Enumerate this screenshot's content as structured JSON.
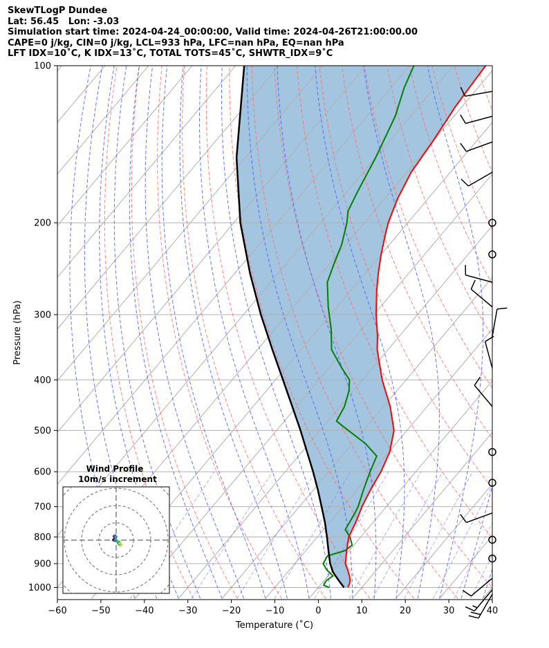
{
  "header": {
    "line1": "SkewTLogP Dundee",
    "line2": "Lat: 56.45   Lon: -3.03",
    "line3": "Simulation start time: 2024-04-24_00:00:00, Valid time: 2024-04-26T21:00:00.00",
    "line4": "CAPE=0 j/kg, CIN=0 j/kg, LCL=933 hPa, LFC=nan hPa, EQ=nan hPa",
    "line5": "LFT IDX=10˚C, K IDX=13˚C, TOTAL TOTS=45˚C, SHWTR_IDX=9˚C"
  },
  "axes": {
    "xlabel": "Temperature (˚C)",
    "ylabel": "Pressure (hPa)"
  },
  "inset": {
    "title1": "Wind Profile",
    "title2": "10m/s increment"
  },
  "colors": {
    "temperature": "#ff0000",
    "dewpoint": "#008000",
    "parcel": "#000000",
    "cape_fill": "#a3c5df",
    "dry_adiabat": "#ff6b6b",
    "moist_adiabat": "#4a5cff",
    "mixing_ratio": "#7b7bef",
    "isotherm": "#b0b0b0",
    "purple_line": "#9b4fcf"
  },
  "chart_data": {
    "type": "line",
    "subtype": "skew-T log-P",
    "xlim": [
      -60,
      40
    ],
    "ylim": [
      1040,
      100
    ],
    "xticks": [
      -60,
      -50,
      -40,
      -30,
      -20,
      -10,
      0,
      10,
      20,
      30,
      40
    ],
    "yticks": [
      1000,
      900,
      800,
      700,
      600,
      500,
      400,
      300,
      200,
      100
    ],
    "yscale": "log",
    "grid": true,
    "series": [
      {
        "key": "temperature",
        "points": [
          [
            1000,
            6.8
          ],
          [
            975,
            6.2
          ],
          [
            950,
            4.9
          ],
          [
            925,
            3.3
          ],
          [
            900,
            1.6
          ],
          [
            850,
            -0.6
          ],
          [
            800,
            -2.8
          ],
          [
            750,
            -4.0
          ],
          [
            700,
            -5.6
          ],
          [
            650,
            -6.9
          ],
          [
            600,
            -8.0
          ],
          [
            550,
            -9.8
          ],
          [
            500,
            -13.0
          ],
          [
            450,
            -18.5
          ],
          [
            400,
            -25.5
          ],
          [
            350,
            -32.5
          ],
          [
            330,
            -35.0
          ],
          [
            300,
            -39.5
          ],
          [
            270,
            -44.0
          ],
          [
            250,
            -47.0
          ],
          [
            230,
            -50.0
          ],
          [
            210,
            -53.0
          ],
          [
            200,
            -54.5
          ],
          [
            180,
            -57.0
          ],
          [
            160,
            -59.0
          ],
          [
            140,
            -60.0
          ],
          [
            120,
            -61.5
          ],
          [
            110,
            -62.0
          ],
          [
            100,
            -62.5
          ]
        ]
      },
      {
        "key": "dewpoint",
        "points": [
          [
            1000,
            2.5
          ],
          [
            990,
            0.8
          ],
          [
            970,
            0.5
          ],
          [
            950,
            1.1
          ],
          [
            925,
            -1.5
          ],
          [
            900,
            -3.5
          ],
          [
            870,
            -4.0
          ],
          [
            850,
            -1.0
          ],
          [
            830,
            -0.4
          ],
          [
            800,
            -2.5
          ],
          [
            775,
            -5.0
          ],
          [
            720,
            -6.0
          ],
          [
            700,
            -6.5
          ],
          [
            650,
            -8.5
          ],
          [
            600,
            -10.5
          ],
          [
            560,
            -12.0
          ],
          [
            530,
            -17.0
          ],
          [
            500,
            -23.5
          ],
          [
            480,
            -28.0
          ],
          [
            450,
            -29.0
          ],
          [
            420,
            -31.0
          ],
          [
            400,
            -33.0
          ],
          [
            380,
            -37.0
          ],
          [
            350,
            -43.0
          ],
          [
            320,
            -47.0
          ],
          [
            290,
            -52.0
          ],
          [
            260,
            -57.0
          ],
          [
            240,
            -59.0
          ],
          [
            220,
            -61.0
          ],
          [
            200,
            -64.0
          ],
          [
            190,
            -66.0
          ],
          [
            175,
            -67.5
          ],
          [
            150,
            -70.0
          ],
          [
            125,
            -73.5
          ],
          [
            110,
            -77.0
          ],
          [
            100,
            -79.0
          ]
        ]
      },
      {
        "key": "parcel",
        "points": [
          [
            1000,
            5.9
          ],
          [
            975,
            3.8
          ],
          [
            950,
            1.7
          ],
          [
            933,
            0.3
          ],
          [
            900,
            -1.9
          ],
          [
            850,
            -4.8
          ],
          [
            800,
            -7.8
          ],
          [
            750,
            -11.1
          ],
          [
            700,
            -14.9
          ],
          [
            650,
            -19.0
          ],
          [
            600,
            -23.6
          ],
          [
            550,
            -28.8
          ],
          [
            500,
            -34.5
          ],
          [
            450,
            -41.0
          ],
          [
            400,
            -48.3
          ],
          [
            350,
            -56.6
          ],
          [
            300,
            -66.0
          ],
          [
            250,
            -76.5
          ],
          [
            200,
            -88.5
          ],
          [
            150,
            -102.0
          ],
          [
            100,
            -118.0
          ]
        ]
      }
    ],
    "wind_barbs": [
      {
        "p": 1030,
        "speed_kt": 20,
        "dir": 210
      },
      {
        "p": 1010,
        "speed_kt": 15,
        "dir": 220
      },
      {
        "p": 960,
        "speed_kt": 10,
        "dir": 230
      },
      {
        "p": 880,
        "speed_kt": 0,
        "dir": 0
      },
      {
        "p": 810,
        "speed_kt": 0,
        "dir": 0
      },
      {
        "p": 720,
        "speed_kt": 10,
        "dir": 250
      },
      {
        "p": 630,
        "speed_kt": 0,
        "dir": 0
      },
      {
        "p": 550,
        "speed_kt": 0,
        "dir": 0
      },
      {
        "p": 450,
        "speed_kt": 10,
        "dir": 320
      },
      {
        "p": 380,
        "speed_kt": 10,
        "dir": 345
      },
      {
        "p": 330,
        "speed_kt": 10,
        "dir": 10
      },
      {
        "p": 290,
        "speed_kt": 10,
        "dir": 310
      },
      {
        "p": 260,
        "speed_kt": 10,
        "dir": 285
      },
      {
        "p": 230,
        "speed_kt": 0,
        "dir": 0
      },
      {
        "p": 200,
        "speed_kt": 0,
        "dir": 0
      },
      {
        "p": 160,
        "speed_kt": 10,
        "dir": 240
      },
      {
        "p": 140,
        "speed_kt": 10,
        "dir": 250
      },
      {
        "p": 125,
        "speed_kt": 10,
        "dir": 255
      },
      {
        "p": 112,
        "speed_kt": 10,
        "dir": 260
      }
    ],
    "hodograph": {
      "rings": 4,
      "points": [
        [
          0.0,
          0.1
        ],
        [
          0.3,
          -0.6
        ],
        [
          0.7,
          -1.0
        ],
        [
          1.0,
          -0.8
        ],
        [
          0.6,
          -0.3
        ],
        [
          -0.2,
          -0.2
        ],
        [
          -0.6,
          0.0
        ],
        [
          -0.3,
          0.4
        ],
        [
          -0.5,
          0.7
        ],
        [
          -0.2,
          0.9
        ],
        [
          0.1,
          0.6
        ],
        [
          -0.1,
          0.3
        ]
      ],
      "colors": [
        "#2a9d8f",
        "#3cb371",
        "#9acd32",
        "#c8d93a",
        "#35b779",
        "#31688e",
        "#440154",
        "#482878",
        "#3e4a89",
        "#2a788e"
      ]
    }
  }
}
